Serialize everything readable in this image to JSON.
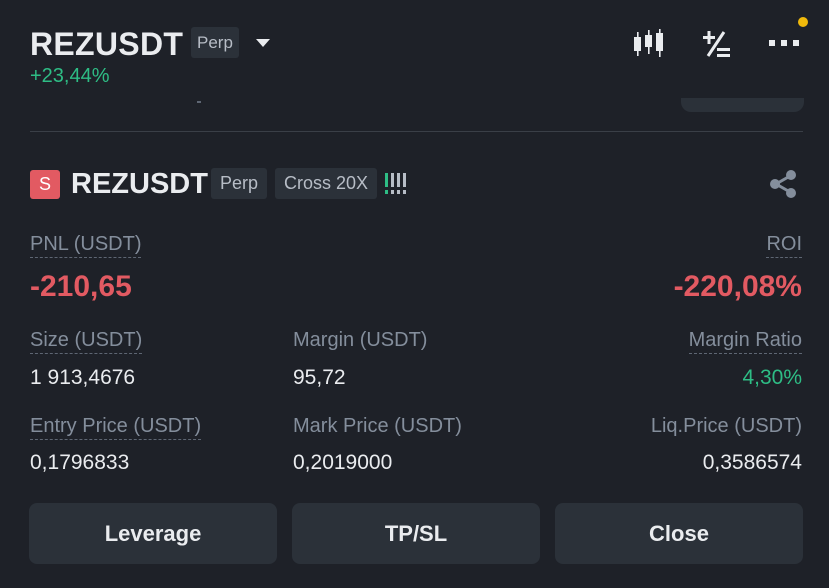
{
  "header": {
    "symbol": "REZUSDT",
    "badge": "Perp",
    "change_pct": "+23,44%",
    "icons": [
      "candlestick-chart-icon",
      "plus-minus-icon",
      "more-icon"
    ],
    "notification_color": "#f0b90b"
  },
  "position": {
    "side_badge": "S",
    "symbol": "REZUSDT",
    "type_badge": "Perp",
    "mode_badge": "Cross 20X",
    "pnl_label": "PNL (USDT)",
    "pnl_value": "-210,65",
    "roi_label": "ROI",
    "roi_value": "-220,08%",
    "size_label": "Size (USDT)",
    "size_value": "1 913,4676",
    "margin_label": "Margin (USDT)",
    "margin_value": "95,72",
    "margin_ratio_label": "Margin Ratio",
    "margin_ratio_value": "4,30%",
    "entry_label": "Entry Price (USDT)",
    "entry_value": "0,1796833",
    "mark_label": "Mark Price (USDT)",
    "mark_value": "0,2019000",
    "liq_label": "Liq.Price (USDT)",
    "liq_value": "0,3586574"
  },
  "actions": {
    "leverage": "Leverage",
    "tpsl": "TP/SL",
    "close": "Close"
  },
  "colors": {
    "background": "#1e2128",
    "negative": "#e25a62",
    "positive": "#2ebd85",
    "button": "#2b3139"
  }
}
